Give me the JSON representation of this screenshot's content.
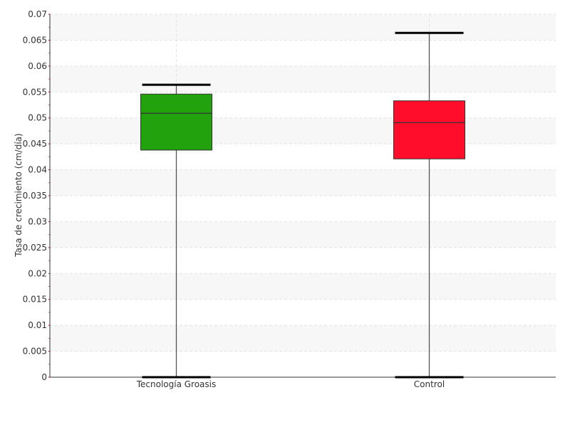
{
  "chart_data": {
    "type": "boxplot",
    "title": "",
    "xlabel": "",
    "ylabel": "Tasa de crecimiento (cm/día)",
    "ylim": [
      0,
      0.07
    ],
    "ytick_step": 0.005,
    "yticks": [
      "0",
      "0.005",
      "0.01",
      "0.015",
      "0.02",
      "0.025",
      "0.03",
      "0.035",
      "0.04",
      "0.045",
      "0.05",
      "0.055",
      "0.06",
      "0.065",
      "0.07"
    ],
    "categories": [
      "Tecnología Groasis",
      "Control"
    ],
    "series": [
      {
        "category": "Tecnología Groasis",
        "whisker_low": 0.0,
        "q1": 0.0438,
        "median": 0.0509,
        "q3": 0.0546,
        "whisker_high": 0.0564,
        "color": "#22a30d"
      },
      {
        "category": "Control",
        "whisker_low": 0.0,
        "q1": 0.0421,
        "median": 0.0491,
        "q3": 0.0533,
        "whisker_high": 0.0664,
        "color": "#ff0d2b"
      }
    ],
    "grid": true,
    "band_color": "#f7f7f7"
  }
}
